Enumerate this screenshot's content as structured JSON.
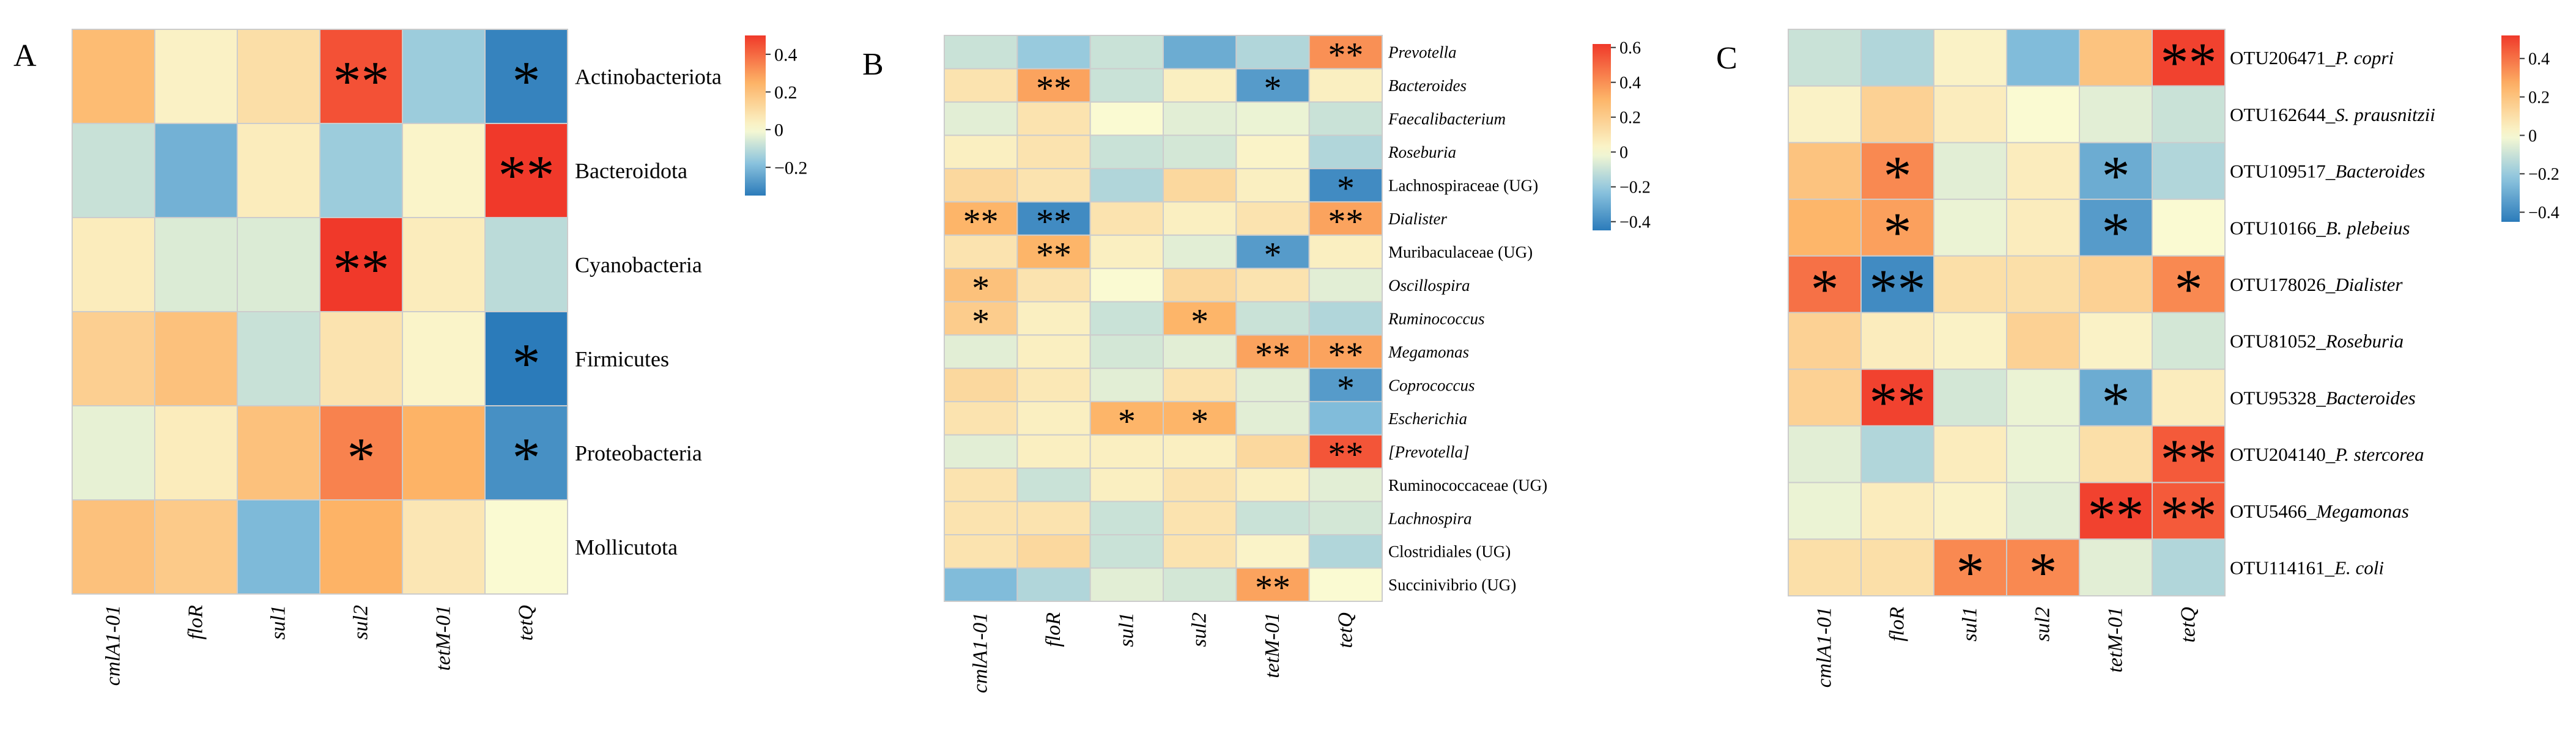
{
  "panels": [
    {
      "letter": "A",
      "genes": [
        "cmlA1-01",
        "floR",
        "sul1",
        "sul2",
        "tetM-01",
        "tetQ"
      ],
      "taxa": [
        {
          "label": "Actinobacteriota",
          "italic": false
        },
        {
          "label": "Bacteroidota",
          "italic": false
        },
        {
          "label": "Cyanobacteria",
          "italic": false
        },
        {
          "label": "Firmicutes",
          "italic": false
        },
        {
          "label": "Proteobacteria",
          "italic": false
        },
        {
          "label": "Mollicutota",
          "italic": false
        }
      ],
      "values": [
        [
          0.22,
          0.03,
          0.1,
          0.45,
          -0.15,
          -0.33
        ],
        [
          -0.08,
          -0.22,
          0.05,
          -0.15,
          0.02,
          0.5
        ],
        [
          0.05,
          -0.05,
          -0.05,
          0.5,
          0.05,
          -0.1
        ],
        [
          0.15,
          0.2,
          -0.08,
          0.08,
          0.02,
          -0.35
        ],
        [
          -0.03,
          0.05,
          0.2,
          0.35,
          0.25,
          -0.3
        ],
        [
          0.2,
          0.17,
          -0.2,
          0.25,
          0.07,
          0.0
        ]
      ],
      "stars": [
        [
          "",
          "",
          "",
          "**",
          "",
          "*"
        ],
        [
          "",
          "",
          "",
          "",
          "",
          "**"
        ],
        [
          "",
          "",
          "",
          "**",
          "",
          ""
        ],
        [
          "",
          "",
          "",
          "",
          "",
          "*"
        ],
        [
          "",
          "",
          "",
          "*",
          "",
          "*"
        ],
        [
          "",
          "",
          "",
          "",
          "",
          ""
        ]
      ],
      "legend": {
        "ticks": [
          "0.4",
          "0.2",
          "0",
          "−0.2"
        ],
        "tick_values": [
          0.4,
          0.2,
          0,
          -0.2
        ],
        "min": -0.35,
        "max": 0.5
      }
    },
    {
      "letter": "B",
      "genes": [
        "cmlA1-01",
        "floR",
        "sul1",
        "sul2",
        "tetM-01",
        "tetQ"
      ],
      "taxa": [
        {
          "label": "Prevotella",
          "italic": true
        },
        {
          "label": "Bacteroides",
          "italic": true
        },
        {
          "label": "Faecalibacterium",
          "italic": true
        },
        {
          "label": "Roseburia",
          "italic": true
        },
        {
          "label": "Lachnospiraceae (UG)",
          "italic": false
        },
        {
          "label": "Dialister",
          "italic": true
        },
        {
          "label": "Muribaculaceae (UG)",
          "italic": false
        },
        {
          "label": "Oscillospira",
          "italic": true
        },
        {
          "label": "Ruminococcus",
          "italic": true
        },
        {
          "label": "Megamonas",
          "italic": true
        },
        {
          "label": "Coprococcus",
          "italic": true
        },
        {
          "label": "Escherichia",
          "italic": true
        },
        {
          "label": "[Prevotella]",
          "italic": true
        },
        {
          "label": "Ruminococcaceae (UG)",
          "italic": false
        },
        {
          "label": "Lachnospira",
          "italic": true
        },
        {
          "label": "Clostridiales (UG)",
          "italic": false
        },
        {
          "label": "Succinivibrio (UG)",
          "italic": false
        }
      ],
      "values": [
        [
          -0.1,
          -0.2,
          -0.1,
          -0.3,
          -0.15,
          0.4
        ],
        [
          0.1,
          0.35,
          -0.1,
          0.05,
          -0.35,
          0.05
        ],
        [
          -0.05,
          0.1,
          0.0,
          -0.05,
          -0.03,
          -0.1
        ],
        [
          0.05,
          0.1,
          -0.1,
          -0.08,
          0.03,
          -0.15
        ],
        [
          0.15,
          0.1,
          -0.15,
          0.15,
          0.05,
          -0.4
        ],
        [
          0.3,
          -0.4,
          0.1,
          0.05,
          0.1,
          0.35
        ],
        [
          0.1,
          0.3,
          0.05,
          -0.05,
          -0.35,
          0.05
        ],
        [
          0.25,
          0.1,
          0.0,
          0.15,
          0.1,
          -0.05
        ],
        [
          0.2,
          0.05,
          -0.1,
          0.3,
          -0.1,
          -0.15
        ],
        [
          -0.05,
          0.05,
          -0.08,
          -0.05,
          0.35,
          0.35
        ],
        [
          0.15,
          0.08,
          -0.05,
          0.1,
          -0.05,
          -0.35
        ],
        [
          0.1,
          0.05,
          0.3,
          0.3,
          -0.05,
          -0.25
        ],
        [
          -0.05,
          0.05,
          0.05,
          0.05,
          0.15,
          0.55
        ],
        [
          0.1,
          -0.1,
          0.05,
          0.1,
          0.05,
          -0.05
        ],
        [
          0.1,
          0.1,
          -0.1,
          0.1,
          -0.1,
          -0.08
        ],
        [
          0.1,
          0.15,
          -0.1,
          0.1,
          0.03,
          -0.15
        ],
        [
          -0.25,
          -0.15,
          -0.05,
          -0.08,
          0.35,
          0.0
        ]
      ],
      "stars": [
        [
          "",
          "",
          "",
          "",
          "",
          "**"
        ],
        [
          "",
          "**",
          "",
          "",
          "*",
          ""
        ],
        [
          "",
          "",
          "",
          "",
          "",
          ""
        ],
        [
          "",
          "",
          "",
          "",
          "",
          ""
        ],
        [
          "",
          "",
          "",
          "",
          "",
          "*"
        ],
        [
          "**",
          "**",
          "",
          "",
          "",
          "**"
        ],
        [
          "",
          "**",
          "",
          "",
          "*",
          ""
        ],
        [
          "*",
          "",
          "",
          "",
          "",
          ""
        ],
        [
          "*",
          "",
          "",
          "*",
          "",
          ""
        ],
        [
          "",
          "",
          "",
          "",
          "**",
          "**"
        ],
        [
          "",
          "",
          "",
          "",
          "",
          "*"
        ],
        [
          "",
          "",
          "*",
          "*",
          "",
          ""
        ],
        [
          "",
          "",
          "",
          "",
          "",
          "**"
        ],
        [
          "",
          "",
          "",
          "",
          "",
          ""
        ],
        [
          "",
          "",
          "",
          "",
          "",
          ""
        ],
        [
          "",
          "",
          "",
          "",
          "",
          ""
        ],
        [
          "",
          "",
          "",
          "",
          "**",
          ""
        ]
      ],
      "legend": {
        "ticks": [
          "0.6",
          "0.4",
          "0.2",
          "0",
          "−0.2",
          "−0.4"
        ],
        "tick_values": [
          0.6,
          0.4,
          0.2,
          0,
          -0.2,
          -0.4
        ],
        "min": -0.45,
        "max": 0.62
      }
    },
    {
      "letter": "C",
      "genes": [
        "cmlA1-01",
        "floR",
        "sul1",
        "sul2",
        "tetM-01",
        "tetQ"
      ],
      "taxa": [
        {
          "prefix": "OTU206471_",
          "name": "P. copri"
        },
        {
          "prefix": "OTU162644_",
          "name": "S. prausnitzii"
        },
        {
          "prefix": "OTU109517_",
          "name": "Bacteroides"
        },
        {
          "prefix": "OTU10166_",
          "name": "B. plebeius"
        },
        {
          "prefix": "OTU178026_",
          "name": "Dialister"
        },
        {
          "prefix": "OTU81052_",
          "name": "Roseburia"
        },
        {
          "prefix": "OTU95328_",
          "name": "Bacteroides"
        },
        {
          "prefix": "OTU204140_",
          "name": "P. stercorea"
        },
        {
          "prefix": "OTU5466_",
          "name": "Megamonas"
        },
        {
          "prefix": "OTU114161_",
          "name": "E. coli"
        }
      ],
      "values": [
        [
          -0.1,
          -0.15,
          0.03,
          -0.25,
          0.2,
          0.5
        ],
        [
          0.03,
          0.15,
          0.05,
          0.0,
          -0.05,
          -0.1
        ],
        [
          0.2,
          0.35,
          -0.05,
          0.05,
          -0.3,
          -0.15
        ],
        [
          0.25,
          0.3,
          -0.03,
          0.05,
          -0.35,
          0.0
        ],
        [
          0.4,
          -0.4,
          0.1,
          0.1,
          0.15,
          0.35
        ],
        [
          0.15,
          0.05,
          0.03,
          0.15,
          0.03,
          -0.08
        ],
        [
          0.15,
          0.5,
          -0.08,
          -0.03,
          -0.3,
          0.05
        ],
        [
          -0.05,
          -0.15,
          0.05,
          -0.03,
          0.1,
          0.45
        ],
        [
          -0.03,
          0.05,
          0.03,
          -0.05,
          0.5,
          0.45
        ],
        [
          0.1,
          0.1,
          0.35,
          0.35,
          -0.05,
          -0.15
        ]
      ],
      "stars": [
        [
          "",
          "",
          "",
          "",
          "",
          "**"
        ],
        [
          "",
          "",
          "",
          "",
          "",
          ""
        ],
        [
          "",
          "*",
          "",
          "",
          "*",
          ""
        ],
        [
          "",
          "*",
          "",
          "",
          "*",
          ""
        ],
        [
          "*",
          "**",
          "",
          "",
          "",
          "*"
        ],
        [
          "",
          "",
          "",
          "",
          "",
          ""
        ],
        [
          "",
          "**",
          "",
          "",
          "*",
          ""
        ],
        [
          "",
          "",
          "",
          "",
          "",
          "**"
        ],
        [
          "",
          "",
          "",
          "",
          "**",
          "**"
        ],
        [
          "",
          "",
          "*",
          "*",
          "",
          ""
        ]
      ],
      "legend": {
        "ticks": [
          "0.4",
          "0.2",
          "0",
          "−0.2",
          "−0.4"
        ],
        "tick_values": [
          0.4,
          0.2,
          0,
          -0.2,
          -0.4
        ],
        "min": -0.45,
        "max": 0.52
      }
    }
  ],
  "chart_data": [
    {
      "type": "heatmap",
      "title": "A",
      "x": [
        "cmlA1-01",
        "floR",
        "sul1",
        "sul2",
        "tetM-01",
        "tetQ"
      ],
      "y": [
        "Actinobacteriota",
        "Bacteroidota",
        "Cyanobacteria",
        "Firmicutes",
        "Proteobacteria",
        "Mollicutota"
      ],
      "values": [
        [
          0.22,
          0.03,
          0.1,
          0.45,
          -0.15,
          -0.33
        ],
        [
          -0.08,
          -0.22,
          0.05,
          -0.15,
          0.02,
          0.5
        ],
        [
          0.05,
          -0.05,
          -0.05,
          0.5,
          0.05,
          -0.1
        ],
        [
          0.15,
          0.2,
          -0.08,
          0.08,
          0.02,
          -0.35
        ],
        [
          -0.03,
          0.05,
          0.2,
          0.35,
          0.25,
          -0.3
        ],
        [
          0.2,
          0.17,
          -0.2,
          0.25,
          0.07,
          0.0
        ]
      ],
      "color_range": [
        -0.35,
        0.5
      ],
      "colorbar_ticks": [
        0.4,
        0.2,
        0,
        -0.2
      ]
    },
    {
      "type": "heatmap",
      "title": "B",
      "x": [
        "cmlA1-01",
        "floR",
        "sul1",
        "sul2",
        "tetM-01",
        "tetQ"
      ],
      "y": [
        "Prevotella",
        "Bacteroides",
        "Faecalibacterium",
        "Roseburia",
        "Lachnospiraceae (UG)",
        "Dialister",
        "Muribaculaceae (UG)",
        "Oscillospira",
        "Ruminococcus",
        "Megamonas",
        "Coprococcus",
        "Escherichia",
        "[Prevotella]",
        "Ruminococcaceae (UG)",
        "Lachnospira",
        "Clostridiales (UG)",
        "Succinivibrio (UG)"
      ],
      "color_range": [
        -0.45,
        0.62
      ],
      "colorbar_ticks": [
        0.6,
        0.4,
        0.2,
        0,
        -0.2,
        -0.4
      ]
    },
    {
      "type": "heatmap",
      "title": "C",
      "x": [
        "cmlA1-01",
        "floR",
        "sul1",
        "sul2",
        "tetM-01",
        "tetQ"
      ],
      "y": [
        "OTU206471_P. copri",
        "OTU162644_S. prausnitzii",
        "OTU109517_Bacteroides",
        "OTU10166_B. plebeius",
        "OTU178026_Dialister",
        "OTU81052_Roseburia",
        "OTU95328_Bacteroides",
        "OTU204140_P. stercorea",
        "OTU5466_Megamonas",
        "OTU114161_E. coli"
      ],
      "color_range": [
        -0.45,
        0.52
      ],
      "colorbar_ticks": [
        0.4,
        0.2,
        0,
        -0.2,
        -0.4
      ]
    }
  ],
  "colors": {
    "neg_strong": "#2b7bba",
    "neg_mid": "#8cc4de",
    "neutral": "#fafad2",
    "pos_mid": "#fdb366",
    "pos_strong": "#f0392a",
    "grid": "#cccccc"
  }
}
